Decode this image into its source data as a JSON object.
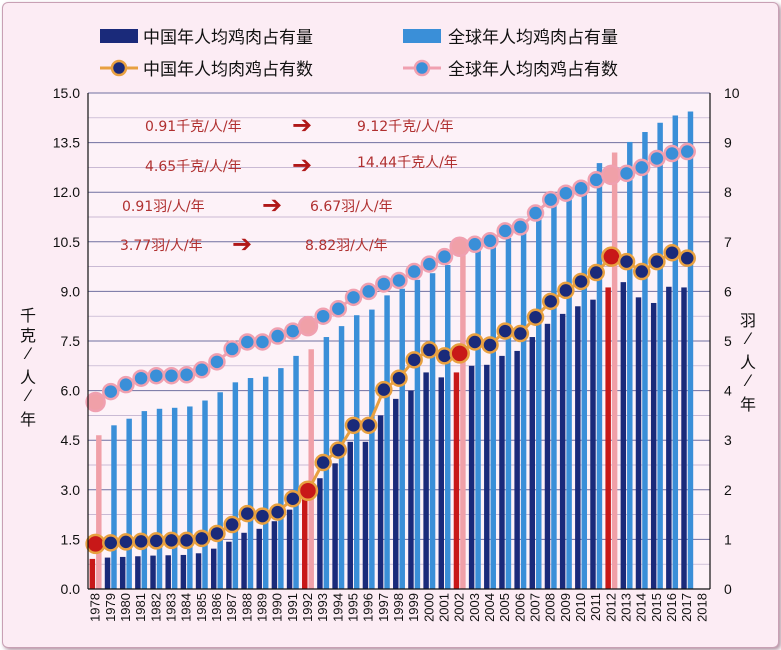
{
  "chart_data": {
    "type": "bar",
    "legend": {
      "china_meat": "中国年人均鸡肉占有量",
      "world_meat": "全球年人均鸡肉占有量",
      "china_count": "中国年人均肉鸡占有数",
      "world_count": "全球年人均肉鸡占有数"
    },
    "categories": [
      "1978",
      "1979",
      "1980",
      "1981",
      "1982",
      "1983",
      "1984",
      "1985",
      "1986",
      "1987",
      "1988",
      "1989",
      "1990",
      "1991",
      "1992",
      "1993",
      "1994",
      "1995",
      "1996",
      "1997",
      "1998",
      "1999",
      "2000",
      "2001",
      "2002",
      "2003",
      "2004",
      "2005",
      "2006",
      "2007",
      "2008",
      "2009",
      "2010",
      "2011",
      "2012",
      "2013",
      "2014",
      "2015",
      "2016",
      "2017",
      "2018"
    ],
    "y_left": {
      "label": "千克/人/年",
      "range": [
        0,
        15
      ],
      "ticks": [
        "0.0",
        "1.5",
        "3.0",
        "4.5",
        "6.0",
        "7.5",
        "9.0",
        "10.5",
        "12.0",
        "13.5",
        "15.0"
      ]
    },
    "y_right": {
      "label": "羽/人/年",
      "range": [
        0,
        10
      ],
      "ticks": [
        "0",
        "1",
        "2",
        "3",
        "4",
        "5",
        "6",
        "7",
        "8",
        "9",
        "10"
      ]
    },
    "series": [
      {
        "name": "中国年人均鸡肉占有量",
        "kind": "bar",
        "axis": "left",
        "color": "#1a2a7a",
        "values": [
          0.91,
          0.95,
          0.97,
          0.99,
          1.01,
          1.02,
          1.03,
          1.08,
          1.22,
          1.43,
          1.7,
          1.82,
          2.05,
          2.4,
          2.8,
          3.35,
          3.8,
          4.45,
          4.45,
          5.25,
          5.75,
          6.0,
          6.55,
          6.4,
          6.55,
          6.75,
          6.78,
          7.05,
          7.2,
          7.62,
          8.02,
          8.32,
          8.55,
          8.75,
          9.12,
          9.28,
          8.82,
          8.65,
          9.14,
          9.12,
          null
        ]
      },
      {
        "name": "全球年人均鸡肉占有量",
        "kind": "bar",
        "axis": "left",
        "color": "#3a8fd8",
        "values": [
          4.65,
          4.95,
          5.15,
          5.38,
          5.45,
          5.48,
          5.52,
          5.7,
          5.95,
          6.25,
          6.38,
          6.42,
          6.68,
          7.05,
          7.25,
          7.62,
          7.95,
          8.28,
          8.45,
          8.88,
          9.08,
          9.35,
          9.55,
          9.8,
          10.1,
          10.38,
          10.45,
          10.62,
          10.8,
          11.48,
          11.75,
          12.05,
          12.28,
          12.88,
          13.2,
          13.52,
          13.82,
          14.1,
          14.32,
          14.44,
          null
        ]
      },
      {
        "name": "中国年人均肉鸡占有数",
        "kind": "line",
        "axis": "right",
        "color": "#e8a040",
        "values": [
          0.91,
          0.93,
          0.95,
          0.96,
          0.97,
          0.98,
          0.98,
          1.02,
          1.12,
          1.3,
          1.52,
          1.47,
          1.55,
          1.82,
          1.98,
          2.55,
          2.8,
          3.3,
          3.3,
          4.02,
          4.25,
          4.62,
          4.82,
          4.7,
          4.75,
          4.98,
          4.92,
          5.2,
          5.15,
          5.48,
          5.8,
          6.02,
          6.2,
          6.38,
          6.7,
          6.6,
          6.4,
          6.6,
          6.78,
          6.67,
          null
        ]
      },
      {
        "name": "全球年人均肉鸡占有数",
        "kind": "line",
        "axis": "right",
        "color": "#f0a0b0",
        "values": [
          3.77,
          3.98,
          4.12,
          4.25,
          4.3,
          4.3,
          4.32,
          4.42,
          4.58,
          4.84,
          4.98,
          4.98,
          5.1,
          5.2,
          5.3,
          5.5,
          5.65,
          5.88,
          6.0,
          6.15,
          6.22,
          6.4,
          6.55,
          6.7,
          6.9,
          6.95,
          7.02,
          7.22,
          7.3,
          7.58,
          7.85,
          7.98,
          8.08,
          8.25,
          8.35,
          8.38,
          8.5,
          8.68,
          8.78,
          8.82,
          null
        ]
      }
    ],
    "highlight_years": [
      "1978",
      "1992",
      "2002",
      "2012"
    ],
    "highlight_colors": {
      "china": "#c81818",
      "world": "#f0a0a8"
    },
    "annotations": [
      {
        "from": "0.91千克/人/年",
        "to": "9.12千克/人/年"
      },
      {
        "from": "4.65千克/人/年",
        "to": "14.44千克人/年"
      },
      {
        "from": "0.91羽/人/年",
        "to": "6.67羽/人/年"
      },
      {
        "from": "3.77羽/人/年",
        "to": "8.82羽/人/年"
      }
    ],
    "grid": true
  }
}
